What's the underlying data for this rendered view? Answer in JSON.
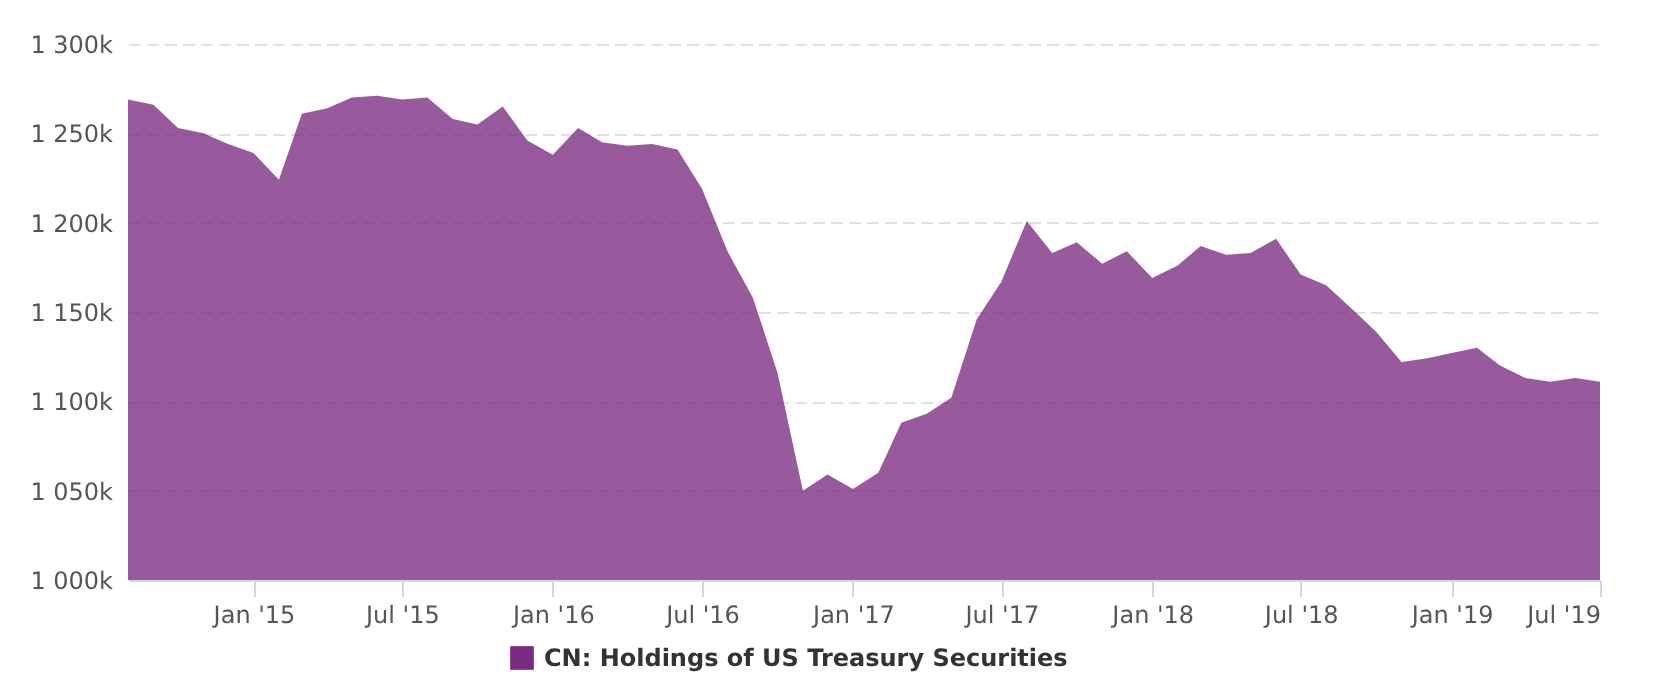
{
  "chart_data": {
    "type": "area",
    "x": [
      "2014-08",
      "2014-09",
      "2014-10",
      "2014-11",
      "2014-12",
      "2015-01",
      "2015-02",
      "2015-03",
      "2015-04",
      "2015-05",
      "2015-06",
      "2015-07",
      "2015-08",
      "2015-09",
      "2015-10",
      "2015-11",
      "2015-12",
      "2016-01",
      "2016-02",
      "2016-03",
      "2016-04",
      "2016-05",
      "2016-06",
      "2016-07",
      "2016-08",
      "2016-09",
      "2016-10",
      "2016-11",
      "2016-12",
      "2017-01",
      "2017-02",
      "2017-03",
      "2017-04",
      "2017-05",
      "2017-06",
      "2017-07",
      "2017-08",
      "2017-09",
      "2017-10",
      "2017-11",
      "2017-12",
      "2018-01",
      "2018-02",
      "2018-03",
      "2018-04",
      "2018-05",
      "2018-06",
      "2018-07",
      "2018-08",
      "2018-09",
      "2018-10",
      "2018-11",
      "2018-12",
      "2019-01",
      "2019-02",
      "2019-03",
      "2019-04",
      "2019-05",
      "2019-06",
      "2019-07"
    ],
    "series": [
      {
        "name": "CN: Holdings of US Treasury Securities",
        "color": "#7b2a82",
        "values": [
          1269000,
          1266000,
          1253000,
          1250000,
          1244000,
          1239000,
          1224000,
          1261000,
          1264000,
          1270000,
          1271000,
          1269000,
          1270000,
          1258000,
          1255000,
          1265000,
          1246000,
          1238000,
          1253000,
          1245000,
          1243000,
          1244000,
          1241000,
          1219000,
          1184000,
          1158000,
          1116000,
          1050000,
          1059000,
          1051000,
          1060000,
          1088000,
          1093000,
          1102000,
          1146000,
          1167000,
          1201000,
          1183000,
          1189000,
          1177000,
          1184000,
          1169000,
          1176000,
          1187000,
          1182000,
          1183000,
          1191000,
          1171000,
          1165000,
          1152000,
          1139000,
          1122000,
          1124000,
          1127000,
          1130000,
          1120000,
          1113000,
          1111000,
          1113000,
          1111000
        ]
      }
    ],
    "xlim": [
      "2014-08",
      "2019-07"
    ],
    "xticks": [
      {
        "value": "2015-01",
        "label": "Jan '15"
      },
      {
        "value": "2015-07",
        "label": "Jul '15"
      },
      {
        "value": "2016-01",
        "label": "Jan '16"
      },
      {
        "value": "2016-07",
        "label": "Jul '16"
      },
      {
        "value": "2017-01",
        "label": "Jan '17"
      },
      {
        "value": "2017-07",
        "label": "Jul '17"
      },
      {
        "value": "2018-01",
        "label": "Jan '18"
      },
      {
        "value": "2018-07",
        "label": "Jul '18"
      },
      {
        "value": "2019-01",
        "label": "Jan '19"
      },
      {
        "value": "2019-07",
        "label": "Jul '19"
      }
    ],
    "ylim": [
      1000000,
      1300000
    ],
    "yticks": [
      {
        "value": 1000000,
        "label": "1 000k"
      },
      {
        "value": 1050000,
        "label": "1 050k"
      },
      {
        "value": 1100000,
        "label": "1 100k"
      },
      {
        "value": 1150000,
        "label": "1 150k"
      },
      {
        "value": 1200000,
        "label": "1 200k"
      },
      {
        "value": 1250000,
        "label": "1 250k"
      },
      {
        "value": 1300000,
        "label": "1 300k"
      }
    ],
    "grid": "y",
    "legend": "bottom"
  }
}
